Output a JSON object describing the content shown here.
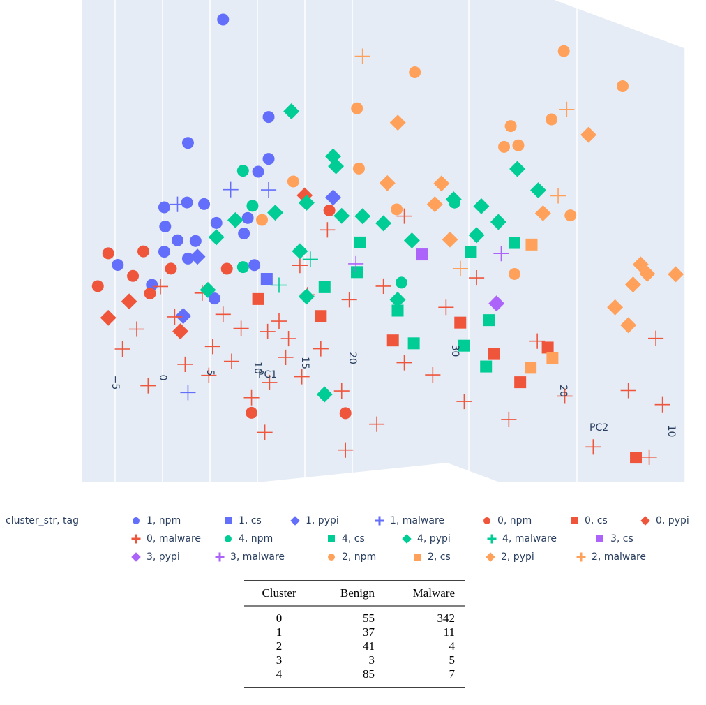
{
  "chart_data": {
    "type": "scatter3d",
    "xlabel": "PC1",
    "ylabel": "PC2",
    "xlim": [
      -10,
      30
    ],
    "ylim": [
      0,
      32
    ],
    "zlim": [
      -15,
      45
    ],
    "xticks": [
      {
        "value": -5,
        "label": "−5"
      },
      0,
      5,
      10,
      15,
      20
    ],
    "yticks": [
      10,
      20,
      30
    ],
    "grid": true,
    "legend_title": "cluster_str, tag",
    "series": [
      {
        "name": "1, npm",
        "color": "#636efa",
        "symbol": "circle",
        "x": [
          4.1,
          8.9,
          0.4,
          8.9,
          7.8,
          -2.1,
          0.3,
          2.1,
          -2,
          3.4,
          -0.7,
          1.2,
          -2.1,
          6.3,
          7.4,
          -7,
          -3.4,
          3.2,
          6.7,
          0.4
        ],
        "y": [
          30,
          30,
          30,
          30,
          30,
          30,
          30,
          30,
          30,
          30,
          30,
          30,
          30,
          30,
          30,
          30,
          30,
          30,
          30,
          30
        ],
        "z": [
          41.9,
          29.7,
          27.6,
          24.7,
          23.3,
          20.2,
          20.5,
          20.1,
          17.9,
          17.7,
          16.1,
          15.8,
          14.9,
          16.1,
          12.2,
          13.9,
          11.1,
          8.7,
          17.9,
          13.8
        ]
      },
      {
        "name": "1, cs",
        "color": "#636efa",
        "symbol": "square",
        "x": [
          8.7
        ],
        "y": [
          30
        ],
        "z": [
          10.4
        ]
      },
      {
        "name": "1, pypi",
        "color": "#636efa",
        "symbol": "diamond",
        "x": [
          15.7,
          -0.1,
          1.4
        ],
        "y": [
          30,
          30,
          30
        ],
        "z": [
          19.3,
          7,
          13.9
        ]
      },
      {
        "name": "1, malware",
        "color": "#636efa",
        "symbol": "cross",
        "x": [
          4.9,
          8.9,
          -0.7,
          0.4
        ],
        "y": [
          30,
          30,
          30,
          30
        ],
        "z": [
          21.5,
          21,
          20.4,
          -2.2
        ]
      },
      {
        "name": "0, npm",
        "color": "#EF553B",
        "symbol": "circle",
        "x": [
          -9.1,
          -8,
          -4.3,
          -5.4,
          -1.4,
          4.5,
          15.3,
          7.1,
          17,
          -3.6
        ],
        "y": [
          30,
          30,
          30,
          30,
          30,
          30,
          30,
          30,
          30,
          30
        ],
        "z": [
          11.6,
          15.4,
          15.2,
          12.4,
          12.8,
          12.1,
          17.8,
          -5.4,
          -6.6,
          10.1
        ]
      },
      {
        "name": "0, cs",
        "color": "#EF553B",
        "symbol": "square",
        "x": [
          29.1,
          22,
          23.5,
          20.6,
          21.4,
          17.8,
          14.4,
          7.8
        ],
        "y": [
          30,
          30,
          17,
          17,
          7,
          17,
          30,
          30
        ],
        "z": [
          2.8,
          1.5,
          6.7,
          2.9,
          -1.4,
          6.6,
          5.3,
          8.1
        ]
      },
      {
        "name": "0, pypi",
        "color": "#EF553B",
        "symbol": "diamond",
        "x": [
          -8,
          -5.8,
          -0.4,
          12.7
        ],
        "y": [
          30,
          30,
          30,
          30
        ],
        "z": [
          7.7,
          9.4,
          5.2,
          19.9
        ]
      },
      {
        "name": "0, malware",
        "color": "#EF553B",
        "symbol": "cross",
        "x": [
          -6.5,
          0.1,
          -3.8,
          2.6,
          7.1,
          10.7,
          12.4,
          16.6,
          17,
          20.3,
          8.5,
          4.1,
          6,
          10,
          1.9,
          -2.5,
          17.4,
          21,
          23.2,
          15.1,
          12.2,
          27.6,
          23.2,
          26.2,
          14.4,
          8.8,
          23.5,
          24.2,
          20.6,
          16.9,
          22.8,
          19.4,
          14.7,
          22.4,
          16,
          25.3,
          -1,
          3,
          5,
          11,
          13,
          9,
          -5
        ],
        "y": [
          30,
          30,
          30,
          30,
          30,
          30,
          30,
          30,
          30,
          30,
          30,
          30,
          30,
          30,
          30,
          30,
          30,
          30,
          30,
          30,
          30,
          30,
          30,
          30,
          30,
          30,
          7,
          7,
          7,
          7,
          7,
          17,
          17,
          17,
          17,
          17,
          30,
          30,
          30,
          30,
          30,
          30,
          30
        ],
        "z": [
          3.8,
          1.2,
          -0.9,
          -0.4,
          -3.6,
          0.8,
          -1.7,
          -3.9,
          -11,
          -8.3,
          -7.9,
          6.7,
          4.8,
          5.2,
          9.5,
          10.8,
          6.9,
          8.1,
          16.2,
          15.5,
          11.6,
          4.8,
          -1.3,
          -3.1,
          1.4,
          4.1,
          12.6,
          4.6,
          6.7,
          0.4,
          -1.5,
          -1.4,
          1.3,
          7.6,
          15.9,
          0.7,
          7,
          3,
          1,
          3,
          8,
          -2,
          6
        ]
      },
      {
        "name": "4, npm",
        "color": "#00cc96",
        "symbol": "circle",
        "x": [
          6.2,
          7.2,
          6.2,
          22.9,
          28.5
        ],
        "y": [
          30,
          30,
          30,
          30,
          30
        ],
        "z": [
          23.6,
          19.3,
          12.1,
          8.3,
          17.2
        ]
      },
      {
        "name": "4, cs",
        "color": "#00cc96",
        "symbol": "square",
        "x": [
          18.5,
          18.2,
          14.8,
          22.5,
          24.2,
          29.5,
          17.3,
          17,
          20,
          15.4
        ],
        "y": [
          30,
          30,
          30,
          30,
          30,
          30,
          17,
          17,
          17,
          17
        ],
        "z": [
          13.6,
          10.1,
          8.7,
          5,
          0.9,
          0,
          10.7,
          5.2,
          19.6,
          19.1
        ]
      },
      {
        "name": "4, pypi",
        "color": "#00cc96",
        "symbol": "diamond",
        "x": [
          11.3,
          15.7,
          16,
          12.9,
          9.6,
          5.4,
          3.4,
          16.6,
          18.8,
          21,
          24,
          12.2,
          12.9,
          22.5,
          14.8,
          2.5,
          20.3,
          22.5,
          16.5,
          18.3,
          16,
          28.4
        ],
        "y": [
          30,
          30,
          30,
          30,
          30,
          30,
          30,
          30,
          30,
          30,
          30,
          30,
          30,
          30,
          30,
          30,
          17,
          17,
          17,
          17,
          17,
          30
        ],
        "z": [
          30.1,
          24.2,
          23,
          19,
          18.2,
          17.8,
          16,
          17,
          16.7,
          15.6,
          13.2,
          13.3,
          7.8,
          6.3,
          -4.1,
          9.8,
          28.4,
          25.6,
          24.4,
          22.3,
          21,
          17.6
        ]
      },
      {
        "name": "4, malware",
        "color": "#00cc96",
        "symbol": "cross",
        "x": [
          10,
          13.3
        ],
        "y": [
          30,
          30
        ],
        "z": [
          9.5,
          12.2
        ]
      },
      {
        "name": "3, cs",
        "color": "#ab63fa",
        "symbol": "square",
        "x": [
          25.1
        ],
        "y": [
          30
        ],
        "z": [
          11.4
        ]
      },
      {
        "name": "3, pypi",
        "color": "#ab63fa",
        "symbol": "diamond",
        "x": [
          18.1
        ],
        "y": [
          17
        ],
        "z": [
          12.6
        ]
      },
      {
        "name": "3, malware",
        "color": "#ab63fa",
        "symbol": "cross",
        "x": [
          18.6,
          18.1
        ],
        "y": [
          17,
          30
        ],
        "z": [
          18.5,
          11.1
        ]
      },
      {
        "name": "2, npm",
        "color": "#FFA15A",
        "symbol": "circle",
        "x": [
          9.5,
          3.4,
          25.2,
          20,
          19.6,
          18.9,
          20.4,
          23.9,
          3.6,
          11.5,
          22.4,
          20,
          25.9,
          8.2
        ],
        "y": [
          17,
          17,
          17,
          7,
          17,
          17,
          17,
          17,
          17,
          30,
          30,
          17,
          17,
          30
        ],
        "z": [
          41.2,
          37.6,
          41.9,
          43.1,
          33.6,
          31.2,
          31.2,
          33.9,
          30.4,
          21.7,
          17.1,
          15.9,
          22.2,
          17.5
        ]
      },
      {
        "name": "2, cs",
        "color": "#FFA15A",
        "symbol": "square",
        "x": [
          21.8,
          21.7,
          24
        ],
        "y": [
          17,
          17,
          17
        ],
        "z": [
          19.2,
          4.5,
          5.4
        ]
      },
      {
        "name": "2, pypi",
        "color": "#FFA15A",
        "symbol": "diamond",
        "x": [
          7.7,
          27.8,
          12.3,
          6.6,
          11.6,
          23,
          21.9,
          22.6,
          25.6,
          21.1,
          19.2,
          20.6,
          13.2
        ],
        "y": [
          17,
          17,
          17,
          17,
          17,
          17,
          7,
          7,
          7,
          7,
          7,
          7,
          17
        ],
        "z": [
          35.4,
          31.6,
          27.6,
          28.3,
          25.2,
          22.8,
          21.6,
          20.4,
          20,
          19.3,
          16.8,
          14.5,
          20.8
        ]
      },
      {
        "name": "2, malware",
        "color": "#FFA15A",
        "symbol": "cross",
        "x": [
          18.8,
          25.5,
          24.6,
          14.3
        ],
        "y": [
          30,
          17,
          17,
          17
        ],
        "z": [
          35.8,
          34.9,
          24.7,
          17.2
        ]
      }
    ]
  },
  "table": {
    "header": [
      "Cluster",
      "Benign",
      "Malware"
    ],
    "rows": [
      [
        "0",
        "55",
        "342"
      ],
      [
        "1",
        "37",
        "11"
      ],
      [
        "2",
        "41",
        "4"
      ],
      [
        "3",
        "3",
        "5"
      ],
      [
        "4",
        "85",
        "7"
      ]
    ]
  }
}
